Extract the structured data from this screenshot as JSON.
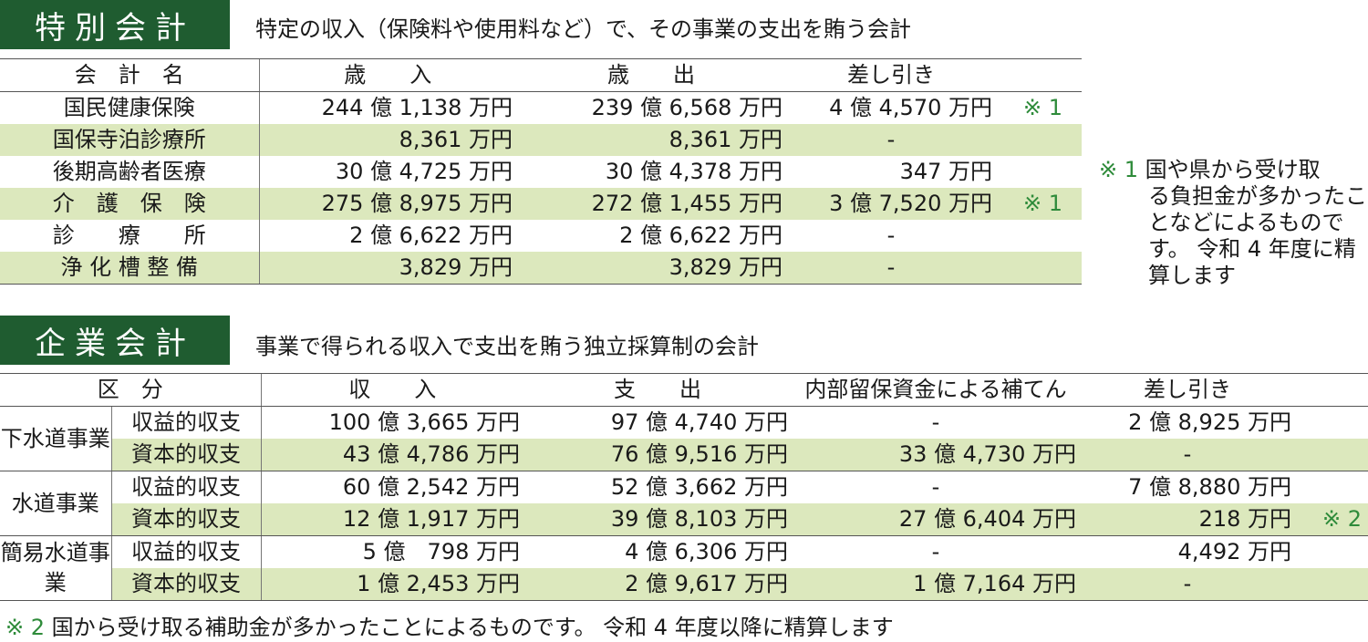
{
  "special": {
    "title": "特別会計",
    "desc": "特定の収入（保険料や使用料など）で、その事業の支出を賄う会計",
    "headers": [
      "会　計　名",
      "歳　　入",
      "歳　　出",
      "差し引き"
    ],
    "rows": [
      {
        "name": "国民健康保険",
        "income": "244 億 1,138 万円",
        "expense": "239 億 6,568 万円",
        "diff": "4 億 4,570 万円",
        "note": "※ 1"
      },
      {
        "name": "国保寺泊診療所",
        "income": "8,361 万円",
        "expense": "8,361 万円",
        "diff": "-",
        "note": ""
      },
      {
        "name": "後期高齢者医療",
        "income": "30 億 4,725 万円",
        "expense": "30 億 4,378 万円",
        "diff": "347 万円",
        "note": ""
      },
      {
        "name": "介　護　保　険",
        "income": "275 億 8,975 万円",
        "expense": "272 億 1,455 万円",
        "diff": "3 億 7,520 万円",
        "note": "※ 1"
      },
      {
        "name": "診　　療　　所",
        "income": "2 億 6,622 万円",
        "expense": "2 億 6,622 万円",
        "diff": "-",
        "note": ""
      },
      {
        "name": "浄 化 槽 整 備",
        "income": "3,829 万円",
        "expense": "3,829 万円",
        "diff": "-",
        "note": ""
      }
    ],
    "side_note_mark": "※ 1",
    "side_note_line1": "国や県から受け取",
    "side_note_rest": "る負担金が多かったことなどによるものです。 令和 4 年度に精算します"
  },
  "enterprise": {
    "title": "企業会計",
    "desc": "事業で得られる収入で支出を賄う独立採算制の会計",
    "headers": [
      "区　分",
      "収　　入",
      "支　　出",
      "内部留保資金による補てん",
      "差し引き"
    ],
    "groups": [
      {
        "name": "下水道事業",
        "rows": [
          {
            "type": "収益的収支",
            "income": "100 億 3,665 万円",
            "expense": "97 億 4,740 万円",
            "reserve": "-",
            "diff": "2 億 8,925 万円",
            "note": ""
          },
          {
            "type": "資本的収支",
            "income": "43 億 4,786 万円",
            "expense": "76 億 9,516 万円",
            "reserve": "33 億 4,730 万円",
            "diff": "-",
            "note": ""
          }
        ]
      },
      {
        "name": "水道事業",
        "rows": [
          {
            "type": "収益的収支",
            "income": "60 億 2,542 万円",
            "expense": "52 億 3,662 万円",
            "reserve": "-",
            "diff": "7 億 8,880 万円",
            "note": ""
          },
          {
            "type": "資本的収支",
            "income": "12 億 1,917 万円",
            "expense": "39 億 8,103 万円",
            "reserve": "27 億 6,404 万円",
            "diff": "218 万円",
            "note": "※ 2"
          }
        ]
      },
      {
        "name": "簡易水道事業",
        "rows": [
          {
            "type": "収益的収支",
            "income": "5 億　798 万円",
            "expense": "4 億 6,306 万円",
            "reserve": "-",
            "diff": "4,492 万円",
            "note": ""
          },
          {
            "type": "資本的収支",
            "income": "1 億 2,453 万円",
            "expense": "2 億 9,617 万円",
            "reserve": "1 億 7,164 万円",
            "diff": "-",
            "note": ""
          }
        ]
      }
    ],
    "footnote_mark": "※ 2",
    "footnote_text": "国から受け取る補助金が多かったことによるものです。 令和 4 年度以降に精算します"
  }
}
